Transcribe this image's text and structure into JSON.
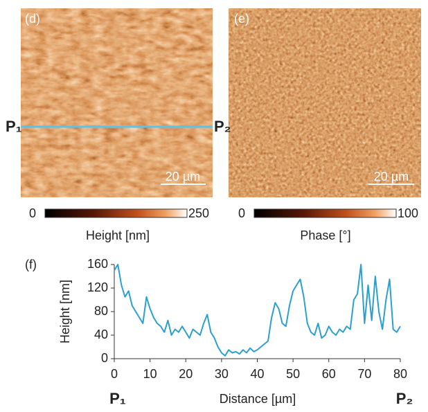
{
  "images": [
    {
      "label": "(d)",
      "scalebar": "20 µm",
      "colorbar_min": "0",
      "colorbar_max": "250",
      "colorbar_title": "Height [nm]",
      "profile_start": "P₁",
      "profile_end": "P₂"
    },
    {
      "label": "(e)",
      "scalebar": "20 µm",
      "colorbar_min": "0",
      "colorbar_max": "100",
      "colorbar_title": "Phase [°]"
    }
  ],
  "chart_data": {
    "type": "line",
    "label": "(f)",
    "x_label": "Distance [µm]",
    "y_label": "Height [nm]",
    "x_start": "P₁",
    "x_end": "P₂",
    "x": [
      0,
      1,
      2,
      3,
      4,
      5,
      6,
      7,
      8,
      9,
      10,
      11,
      12,
      13,
      14,
      15,
      16,
      17,
      18,
      19,
      20,
      21,
      22,
      23,
      24,
      25,
      26,
      27,
      28,
      29,
      30,
      31,
      32,
      33,
      34,
      35,
      36,
      37,
      38,
      39,
      40,
      41,
      42,
      43,
      44,
      45,
      46,
      47,
      48,
      49,
      50,
      51,
      52,
      53,
      54,
      55,
      56,
      57,
      58,
      59,
      60,
      61,
      62,
      63,
      64,
      65,
      66,
      67,
      68,
      69,
      70,
      71,
      72,
      73,
      74,
      75,
      76,
      77,
      78,
      79,
      80
    ],
    "series": [
      {
        "color": "#2a9fd0",
        "values": [
          150,
          160,
          125,
          105,
          115,
          90,
          80,
          70,
          60,
          105,
          85,
          70,
          60,
          55,
          45,
          65,
          40,
          50,
          45,
          55,
          45,
          35,
          50,
          45,
          40,
          60,
          75,
          45,
          35,
          20,
          10,
          5,
          15,
          10,
          12,
          8,
          15,
          10,
          18,
          12,
          15,
          20,
          25,
          30,
          70,
          95,
          85,
          60,
          55,
          90,
          115,
          125,
          135,
          105,
          60,
          45,
          40,
          60,
          35,
          40,
          55,
          45,
          40,
          50,
          45,
          55,
          50,
          100,
          110,
          160,
          60,
          125,
          65,
          140,
          80,
          50,
          100,
          135,
          50,
          45,
          55
        ]
      }
    ],
    "xlim": [
      0,
      80
    ],
    "ylim": [
      0,
      160
    ],
    "xticks": [
      0,
      10,
      20,
      30,
      40,
      50,
      60,
      70,
      80
    ],
    "yticks": [
      0,
      40,
      80,
      120,
      160
    ]
  }
}
